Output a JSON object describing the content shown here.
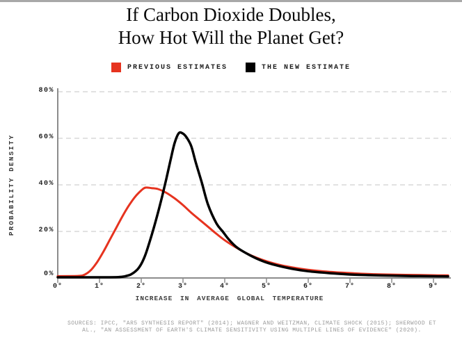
{
  "page": {
    "background_color": "#ffffff",
    "top_border_color": "#a8a8a8"
  },
  "title": {
    "line1": "If Carbon Dioxide Doubles,",
    "line2": "How Hot Will the Planet Get?"
  },
  "sources": {
    "line1": "SOURCES:  IPCC, \"AR5 SYNTHESIS REPORT\" (2014); WAGNER AND WEITZMAN, CLIMATE SHOCK (2015); SHERWOOD ET",
    "line2": "AL., \"AN ASSESSMENT OF EARTH'S CLIMATE SENSITIVITY USING MULTIPLE LINES OF EVIDENCE\" (2020)."
  },
  "chart_data": {
    "type": "line",
    "title": "If Carbon Dioxide Doubles, How Hot Will the Planet Get?",
    "xlabel": "INCREASE IN AVERAGE GLOBAL TEMPERATURE",
    "ylabel": "PROBABILITY DENSITY",
    "xlim": [
      0,
      9.35
    ],
    "ylim": [
      0,
      80
    ],
    "x_ticks": [
      0,
      1,
      2,
      3,
      4,
      5,
      6,
      7,
      8,
      9
    ],
    "x_tick_labels": [
      "0°",
      "1°",
      "2°",
      "3°",
      "4°",
      "5°",
      "6°",
      "7°",
      "8°",
      "9°"
    ],
    "y_ticks": [
      0,
      20,
      40,
      60,
      80
    ],
    "y_tick_labels": [
      "0%",
      "20%",
      "40%",
      "60%",
      "80%"
    ],
    "grid": "horizontal dashed gridlines at 20/40/60/80, none at 0",
    "grid_color": "#d9d9d9",
    "axis_color": "#8c8c8c",
    "legend_position": "top-center",
    "series": [
      {
        "name": "PREVIOUS ESTIMATES",
        "color": "#e6331f",
        "stroke_width": 3,
        "x": [
          0,
          0.5,
          0.65,
          0.8,
          0.95,
          1.1,
          1.25,
          1.4,
          1.55,
          1.7,
          1.85,
          2.0,
          2.1,
          2.25,
          2.4,
          2.6,
          2.8,
          3.0,
          3.2,
          3.4,
          3.6,
          3.8,
          4.0,
          4.25,
          4.5,
          4.75,
          5.0,
          5.3,
          5.6,
          6.0,
          6.4,
          6.8,
          7.2,
          7.6,
          8.0,
          8.5,
          9.0,
          9.35
        ],
        "y": [
          0.8,
          0.9,
          1.5,
          3.5,
          7,
          11.5,
          16.5,
          21.5,
          26.5,
          31,
          34.8,
          37.6,
          38.8,
          38.6,
          38.2,
          36.6,
          34.2,
          31.3,
          28,
          25,
          22,
          19,
          16.2,
          13.3,
          10.8,
          8.8,
          7.2,
          5.7,
          4.6,
          3.5,
          2.8,
          2.3,
          1.9,
          1.6,
          1.45,
          1.3,
          1.15,
          1.1
        ]
      },
      {
        "name": "THE NEW ESTIMATE",
        "color": "#000000",
        "stroke_width": 3.5,
        "x": [
          0,
          1.0,
          1.45,
          1.6,
          1.75,
          1.9,
          2.0,
          2.1,
          2.2,
          2.3,
          2.4,
          2.5,
          2.6,
          2.7,
          2.8,
          2.9,
          3.0,
          3.1,
          3.2,
          3.3,
          3.45,
          3.6,
          3.8,
          3.95,
          4.1,
          4.3,
          4.6,
          4.9,
          5.2,
          5.6,
          6.0,
          6.5,
          7.0,
          7.5,
          8.0,
          8.5,
          9.0,
          9.35
        ],
        "y": [
          0.3,
          0.3,
          0.4,
          0.7,
          1.5,
          3.5,
          6,
          10,
          15.5,
          21.5,
          28,
          35,
          42.5,
          50.5,
          58,
          62.2,
          62.0,
          60,
          56.5,
          50,
          41,
          31.5,
          23.5,
          20,
          16.5,
          13,
          9.8,
          7.3,
          5.6,
          4.0,
          2.9,
          2.1,
          1.5,
          1.2,
          1.0,
          0.85,
          0.75,
          0.7
        ]
      }
    ],
    "annotations": []
  }
}
